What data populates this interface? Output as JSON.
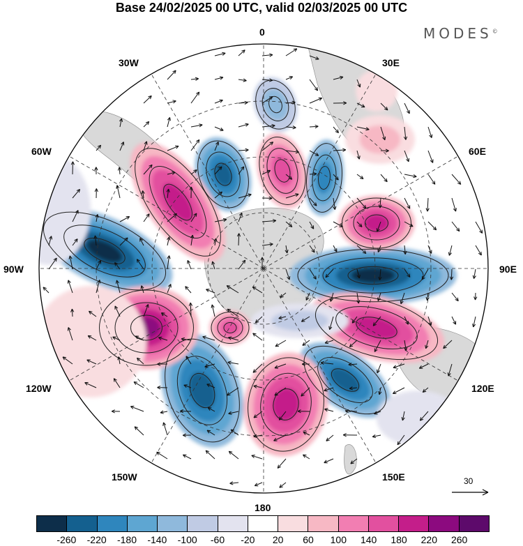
{
  "title": "Base 24/02/2025 00 UTC, valid 02/03/2025 00 UTC",
  "brand": "MODES",
  "brand_mark": "©",
  "longitude_labels": {
    "n": "0",
    "s": "180",
    "w90": "90W",
    "e90": "90E",
    "w30": "30W",
    "e30": "30E",
    "w60": "60W",
    "e60": "60E",
    "w120": "120W",
    "e120": "120E",
    "w150": "150W",
    "e150": "150E"
  },
  "reference_vector": "30",
  "colorbar": {
    "colors": [
      "#0d2e4a",
      "#14608f",
      "#2f86bd",
      "#5ea6d2",
      "#8fb9dc",
      "#c0cbe4",
      "#e3e3ef",
      "#ffffff",
      "#f9dde0",
      "#f7b8c4",
      "#f27eb2",
      "#e2509f",
      "#c41e8a",
      "#8c0a7f",
      "#5d0a6b"
    ],
    "tick_labels": [
      "-260",
      "-220",
      "-180",
      "-140",
      "-100",
      "-60",
      "-20",
      "20",
      "60",
      "100",
      "140",
      "180",
      "220",
      "260"
    ]
  },
  "field_colors": {
    "land": "#d9d9d9",
    "pos_max": "#8c0a7f",
    "neg_max": "#0d2e4a"
  }
}
